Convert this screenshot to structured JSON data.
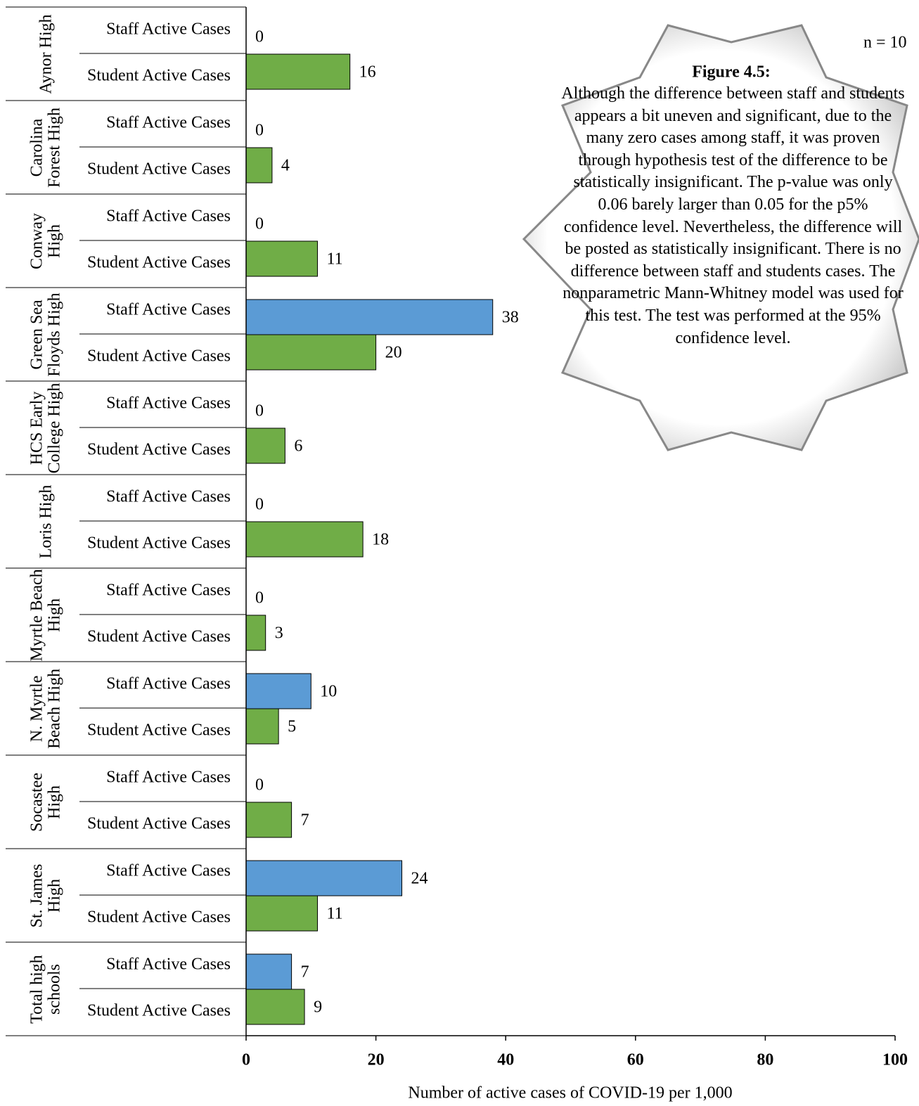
{
  "chart_data": {
    "type": "grouped-hbar",
    "categories": [
      "Aynor High",
      "Carolina Forest High",
      "Conway High",
      "Green Sea Floyds High",
      "HCS Early College High",
      "Loris High",
      "Myrtle Beach High",
      "N. Myrtle Beach High",
      "Socastee High",
      "St. James High",
      "Total high schools"
    ],
    "series": [
      {
        "name": "Staff Active Cases",
        "color": "#5b9bd5",
        "values": [
          0,
          0,
          0,
          38,
          0,
          0,
          0,
          10,
          0,
          24,
          7
        ]
      },
      {
        "name": "Student Active Cases",
        "color": "#70ad47",
        "values": [
          16,
          4,
          11,
          20,
          6,
          18,
          3,
          5,
          7,
          11,
          9
        ]
      }
    ],
    "xlim": [
      0,
      100
    ],
    "xticks": [
      0,
      20,
      40,
      60,
      80,
      100
    ],
    "xlabel": "Number of active cases of  COVID-19 per 1,000",
    "annotation": {
      "title": "Figure 4.5:",
      "text": "Although the difference between staff and students appears a bit uneven and significant, due to the many zero cases among staff,  it was proven through hypothesis test of the difference to be statistically insignificant. The p-value was only 0.06 barely larger than 0.05 for the p5% confidence level. Nevertheless, the difference will be posted as statistically insignificant. There is no difference between staff and students cases. The nonparametric Mann-Whitney model was used for this test. The test was performed at the 95% confidence level."
    },
    "note": "n = 10"
  }
}
